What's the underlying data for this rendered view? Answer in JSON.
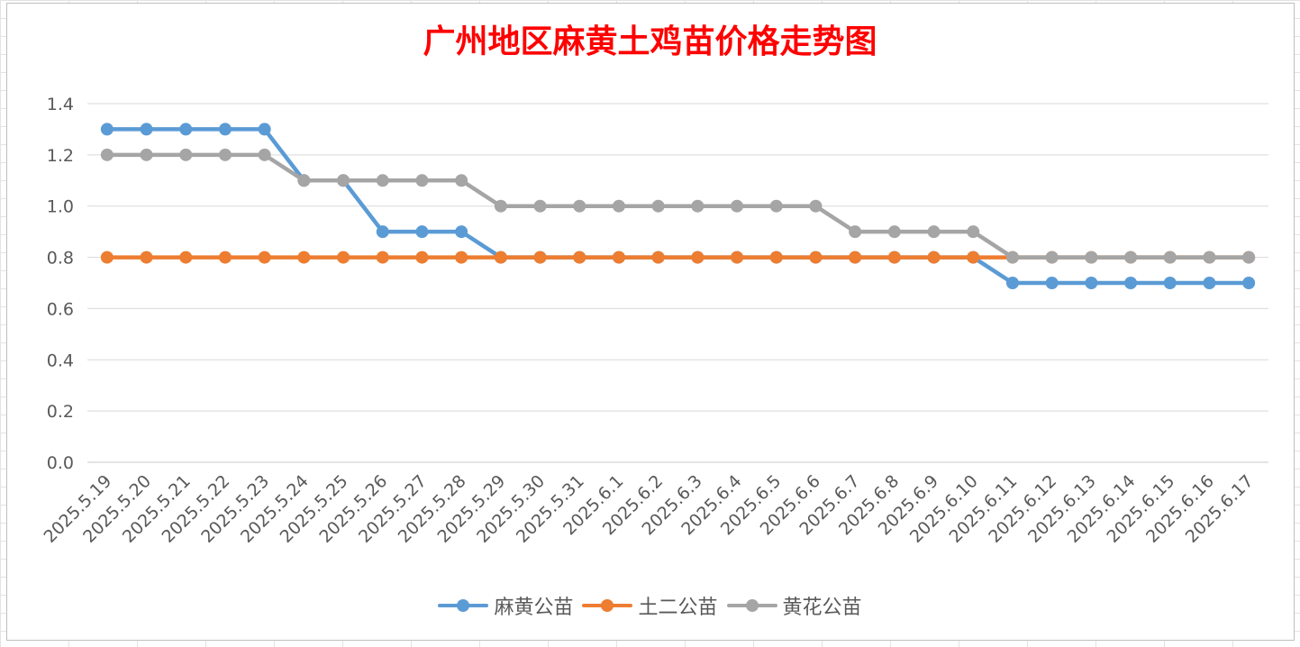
{
  "chart_data": {
    "type": "line",
    "title": "广州地区麻黄土鸡苗价格走势图",
    "xlabel": "",
    "ylabel": "",
    "ylim": [
      0,
      1.4
    ],
    "yticks": [
      "0.0",
      "0.2",
      "0.4",
      "0.6",
      "0.8",
      "1.0",
      "1.2",
      "1.4"
    ],
    "grid": true,
    "legend": "bottom",
    "categories": [
      "2025.5.19",
      "2025.5.20",
      "2025.5.21",
      "2025.5.22",
      "2025.5.23",
      "2025.5.24",
      "2025.5.25",
      "2025.5.26",
      "2025.5.27",
      "2025.5.28",
      "2025.5.29",
      "2025.5.30",
      "2025.5.31",
      "2025.6.1",
      "2025.6.2",
      "2025.6.3",
      "2025.6.4",
      "2025.6.5",
      "2025.6.6",
      "2025.6.7",
      "2025.6.8",
      "2025.6.9",
      "2025.6.10",
      "2025.6.11",
      "2025.6.12",
      "2025.6.13",
      "2025.6.14",
      "2025.6.15",
      "2025.6.16",
      "2025.6.17"
    ],
    "series": [
      {
        "name": "麻黄公苗",
        "color": "#5b9bd5",
        "values": [
          1.3,
          1.3,
          1.3,
          1.3,
          1.3,
          1.1,
          1.1,
          0.9,
          0.9,
          0.9,
          0.8,
          0.8,
          0.8,
          0.8,
          0.8,
          0.8,
          0.8,
          0.8,
          0.8,
          0.8,
          0.8,
          0.8,
          0.8,
          0.7,
          0.7,
          0.7,
          0.7,
          0.7,
          0.7,
          0.7
        ]
      },
      {
        "name": "土二公苗",
        "color": "#ed7d31",
        "values": [
          0.8,
          0.8,
          0.8,
          0.8,
          0.8,
          0.8,
          0.8,
          0.8,
          0.8,
          0.8,
          0.8,
          0.8,
          0.8,
          0.8,
          0.8,
          0.8,
          0.8,
          0.8,
          0.8,
          0.8,
          0.8,
          0.8,
          0.8,
          0.8,
          0.8,
          0.8,
          0.8,
          0.8,
          0.8,
          0.8
        ]
      },
      {
        "name": "黄花公苗",
        "color": "#a5a5a5",
        "values": [
          1.2,
          1.2,
          1.2,
          1.2,
          1.2,
          1.1,
          1.1,
          1.1,
          1.1,
          1.1,
          1.0,
          1.0,
          1.0,
          1.0,
          1.0,
          1.0,
          1.0,
          1.0,
          1.0,
          0.9,
          0.9,
          0.9,
          0.9,
          0.8,
          0.8,
          0.8,
          0.8,
          0.8,
          0.8,
          0.8
        ]
      }
    ]
  }
}
